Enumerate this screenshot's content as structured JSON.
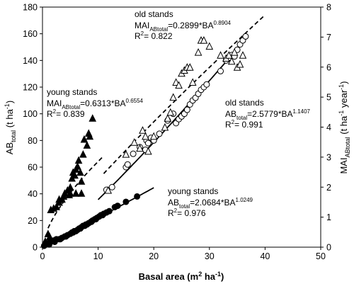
{
  "chart_data": {
    "type": "scatter",
    "xlabel": {
      "main": "Basal area (m",
      "sup": "2",
      "tail": " ha",
      "sup2": "-1",
      "end": ")"
    },
    "ylabel_left": {
      "main": "AB",
      "sub": "total",
      "tail": " (t ha",
      "sup": "-1",
      "end": ")"
    },
    "ylabel_right": {
      "main": "MAI",
      "sub": "ABtotal",
      "tail": " (t ha",
      "sup": "-1",
      "mid": " year",
      "sup2": "-1",
      "end": ")"
    },
    "xlim": [
      0,
      50
    ],
    "ylim_left": [
      0,
      180
    ],
    "ylim_right": [
      0,
      8
    ],
    "x_ticks": [
      0,
      10,
      20,
      30,
      40,
      50
    ],
    "y_ticks_left": [
      0,
      20,
      40,
      60,
      80,
      100,
      120,
      140,
      160,
      180
    ],
    "y_ticks_right": [
      0,
      1,
      2,
      3,
      4,
      5,
      6,
      7,
      8
    ],
    "series": [
      {
        "name": "young stands AB",
        "marker": "filled-circle",
        "axis": "left",
        "points": [
          [
            0.3,
            1
          ],
          [
            0.6,
            2
          ],
          [
            1,
            3
          ],
          [
            1.5,
            4
          ],
          [
            2,
            5
          ],
          [
            2.5,
            6
          ],
          [
            3,
            6
          ],
          [
            3.5,
            7
          ],
          [
            4,
            8
          ],
          [
            4.5,
            9
          ],
          [
            5,
            10
          ],
          [
            5.3,
            11
          ],
          [
            5.7,
            12
          ],
          [
            6,
            12
          ],
          [
            6.3,
            13
          ],
          [
            6.6,
            14
          ],
          [
            7,
            15
          ],
          [
            7.3,
            16
          ],
          [
            7.6,
            16
          ],
          [
            8,
            17
          ],
          [
            8.3,
            18
          ],
          [
            8.7,
            19
          ],
          [
            9,
            20
          ],
          [
            9.4,
            21
          ],
          [
            9.8,
            22
          ],
          [
            10.2,
            23
          ],
          [
            10.5,
            24
          ],
          [
            11,
            25
          ],
          [
            11.5,
            26
          ],
          [
            12,
            27
          ],
          [
            13,
            30
          ],
          [
            13.5,
            31
          ],
          [
            15,
            34
          ],
          [
            17,
            38
          ],
          [
            1.2,
            2
          ],
          [
            2.2,
            4
          ],
          [
            3.2,
            6
          ],
          [
            4.2,
            8
          ],
          [
            5.5,
            11
          ],
          [
            6.8,
            14
          ],
          [
            7.8,
            17
          ],
          [
            8.8,
            19
          ],
          [
            9.6,
            21
          ],
          [
            10.8,
            24
          ]
        ]
      },
      {
        "name": "old stands AB",
        "marker": "open-circle",
        "axis": "left",
        "points": [
          [
            11.5,
            43
          ],
          [
            12.5,
            45
          ],
          [
            15,
            60
          ],
          [
            15.3,
            62
          ],
          [
            16.3,
            70
          ],
          [
            17.5,
            75
          ],
          [
            18.5,
            73
          ],
          [
            18.7,
            80
          ],
          [
            19,
            78
          ],
          [
            19.5,
            82
          ],
          [
            20,
            80
          ],
          [
            21,
            85
          ],
          [
            22.5,
            95
          ],
          [
            23.5,
            100
          ],
          [
            24,
            93
          ],
          [
            24.5,
            96
          ],
          [
            25,
            98
          ],
          [
            25.5,
            100
          ],
          [
            26,
            103
          ],
          [
            26.5,
            107
          ],
          [
            27,
            110
          ],
          [
            27.5,
            112
          ],
          [
            28,
            115
          ],
          [
            28.5,
            118
          ],
          [
            29,
            120
          ],
          [
            29.5,
            122
          ],
          [
            32,
            132
          ],
          [
            33,
            140
          ],
          [
            33.5,
            142
          ],
          [
            34,
            144
          ],
          [
            34.5,
            143
          ],
          [
            35,
            148
          ],
          [
            35.5,
            152
          ],
          [
            36,
            155
          ],
          [
            36.5,
            158
          ]
        ]
      },
      {
        "name": "young stands MAI",
        "marker": "filled-triangle",
        "axis": "right",
        "points": [
          [
            0.5,
            0.2
          ],
          [
            1,
            0.45
          ],
          [
            1.3,
            0.35
          ],
          [
            1.5,
            1.25
          ],
          [
            2,
            1.3
          ],
          [
            2.5,
            1.35
          ],
          [
            3,
            1.5
          ],
          [
            3,
            1.6
          ],
          [
            3.5,
            1.6
          ],
          [
            3.8,
            1.7
          ],
          [
            4,
            1.8
          ],
          [
            4.5,
            1.9
          ],
          [
            4.8,
            1.75
          ],
          [
            5,
            2.0
          ],
          [
            5,
            1.8
          ],
          [
            5.3,
            2.3
          ],
          [
            5.5,
            2.5
          ],
          [
            5.8,
            2.4
          ],
          [
            6,
            2.6
          ],
          [
            6,
            1.8
          ],
          [
            6.3,
            2.7
          ],
          [
            6.5,
            2.9
          ],
          [
            6.8,
            2.5
          ],
          [
            7,
            2.2
          ],
          [
            7,
            1.8
          ],
          [
            7.3,
            3.1
          ],
          [
            7.5,
            3.6
          ],
          [
            8,
            3.4
          ],
          [
            8.3,
            3.8
          ],
          [
            8.5,
            3.7
          ],
          [
            9,
            4.3
          ]
        ]
      },
      {
        "name": "old stands MAI",
        "marker": "open-triangle",
        "axis": "right",
        "points": [
          [
            11.8,
            1.9
          ],
          [
            15,
            3.1
          ],
          [
            16.5,
            3.5
          ],
          [
            17.5,
            3.3
          ],
          [
            18,
            3.9
          ],
          [
            18.5,
            3.7
          ],
          [
            19,
            3.2
          ],
          [
            20,
            3.7
          ],
          [
            22,
            4.0
          ],
          [
            22.5,
            4.3
          ],
          [
            23,
            4.5
          ],
          [
            23.5,
            5.0
          ],
          [
            24,
            5.5
          ],
          [
            24.5,
            5.4
          ],
          [
            25,
            5.8
          ],
          [
            25.5,
            5.9
          ],
          [
            26,
            6.0
          ],
          [
            26.5,
            6.0
          ],
          [
            27,
            5.5
          ],
          [
            28,
            6.5
          ],
          [
            28.5,
            6.9
          ],
          [
            29,
            6.9
          ],
          [
            30,
            6.7
          ],
          [
            32,
            6.4
          ],
          [
            33,
            6.3
          ],
          [
            34,
            6.2
          ],
          [
            34.5,
            6.5
          ],
          [
            35,
            6.0
          ],
          [
            35.5,
            6.1
          ],
          [
            36,
            6.4
          ],
          [
            33.5,
            6.4
          ]
        ]
      }
    ],
    "fits": [
      {
        "name": "young stands AB fit",
        "style": "solid",
        "axis": "left",
        "a": 2.0684,
        "b": 1.0249,
        "x_range": [
          0,
          20
        ]
      },
      {
        "name": "old stands AB fit",
        "style": "solid",
        "axis": "left",
        "a": 2.5779,
        "b": 1.1407,
        "x_range": [
          10,
          37
        ]
      },
      {
        "name": "young stands MAI fit",
        "style": "dashed",
        "axis": "right",
        "a": 0.6313,
        "b": 0.6554,
        "x_range": [
          1,
          11
        ]
      },
      {
        "name": "old stands MAI fit",
        "style": "dashed",
        "axis": "right",
        "a": 0.2899,
        "b": 0.8904,
        "x_range": [
          11,
          40
        ]
      }
    ],
    "annotations": {
      "old_mai": {
        "title": "old stands",
        "eq_pre": "MAI",
        "eq_sub": "ABtotal",
        "eq_mid": "=0.2899*BA",
        "eq_sup": "0.8904",
        "r2": "R",
        "r2_sup": "2",
        "r2_val": "= 0.822"
      },
      "young_mai": {
        "title": "young stands",
        "eq_pre": "MAI",
        "eq_sub": "ABtotal",
        "eq_mid": "=0.6313*BA",
        "eq_sup": "0.6554",
        "r2": "R",
        "r2_sup": "2",
        "r2_val": "= 0.839"
      },
      "old_ab": {
        "title": "old stands",
        "eq_pre": "AB",
        "eq_sub": "total",
        "eq_mid": "=2.5779*BA",
        "eq_sup": "1.1407",
        "r2": "R",
        "r2_sup": "2",
        "r2_val": "= 0.991"
      },
      "young_ab": {
        "title": "young stands",
        "eq_pre": "AB",
        "eq_sub": "total",
        "eq_mid": "=2.0684*BA",
        "eq_sup": "1.0249",
        "r2": "R",
        "r2_sup": "2",
        "r2_val": "= 0.976"
      }
    }
  }
}
